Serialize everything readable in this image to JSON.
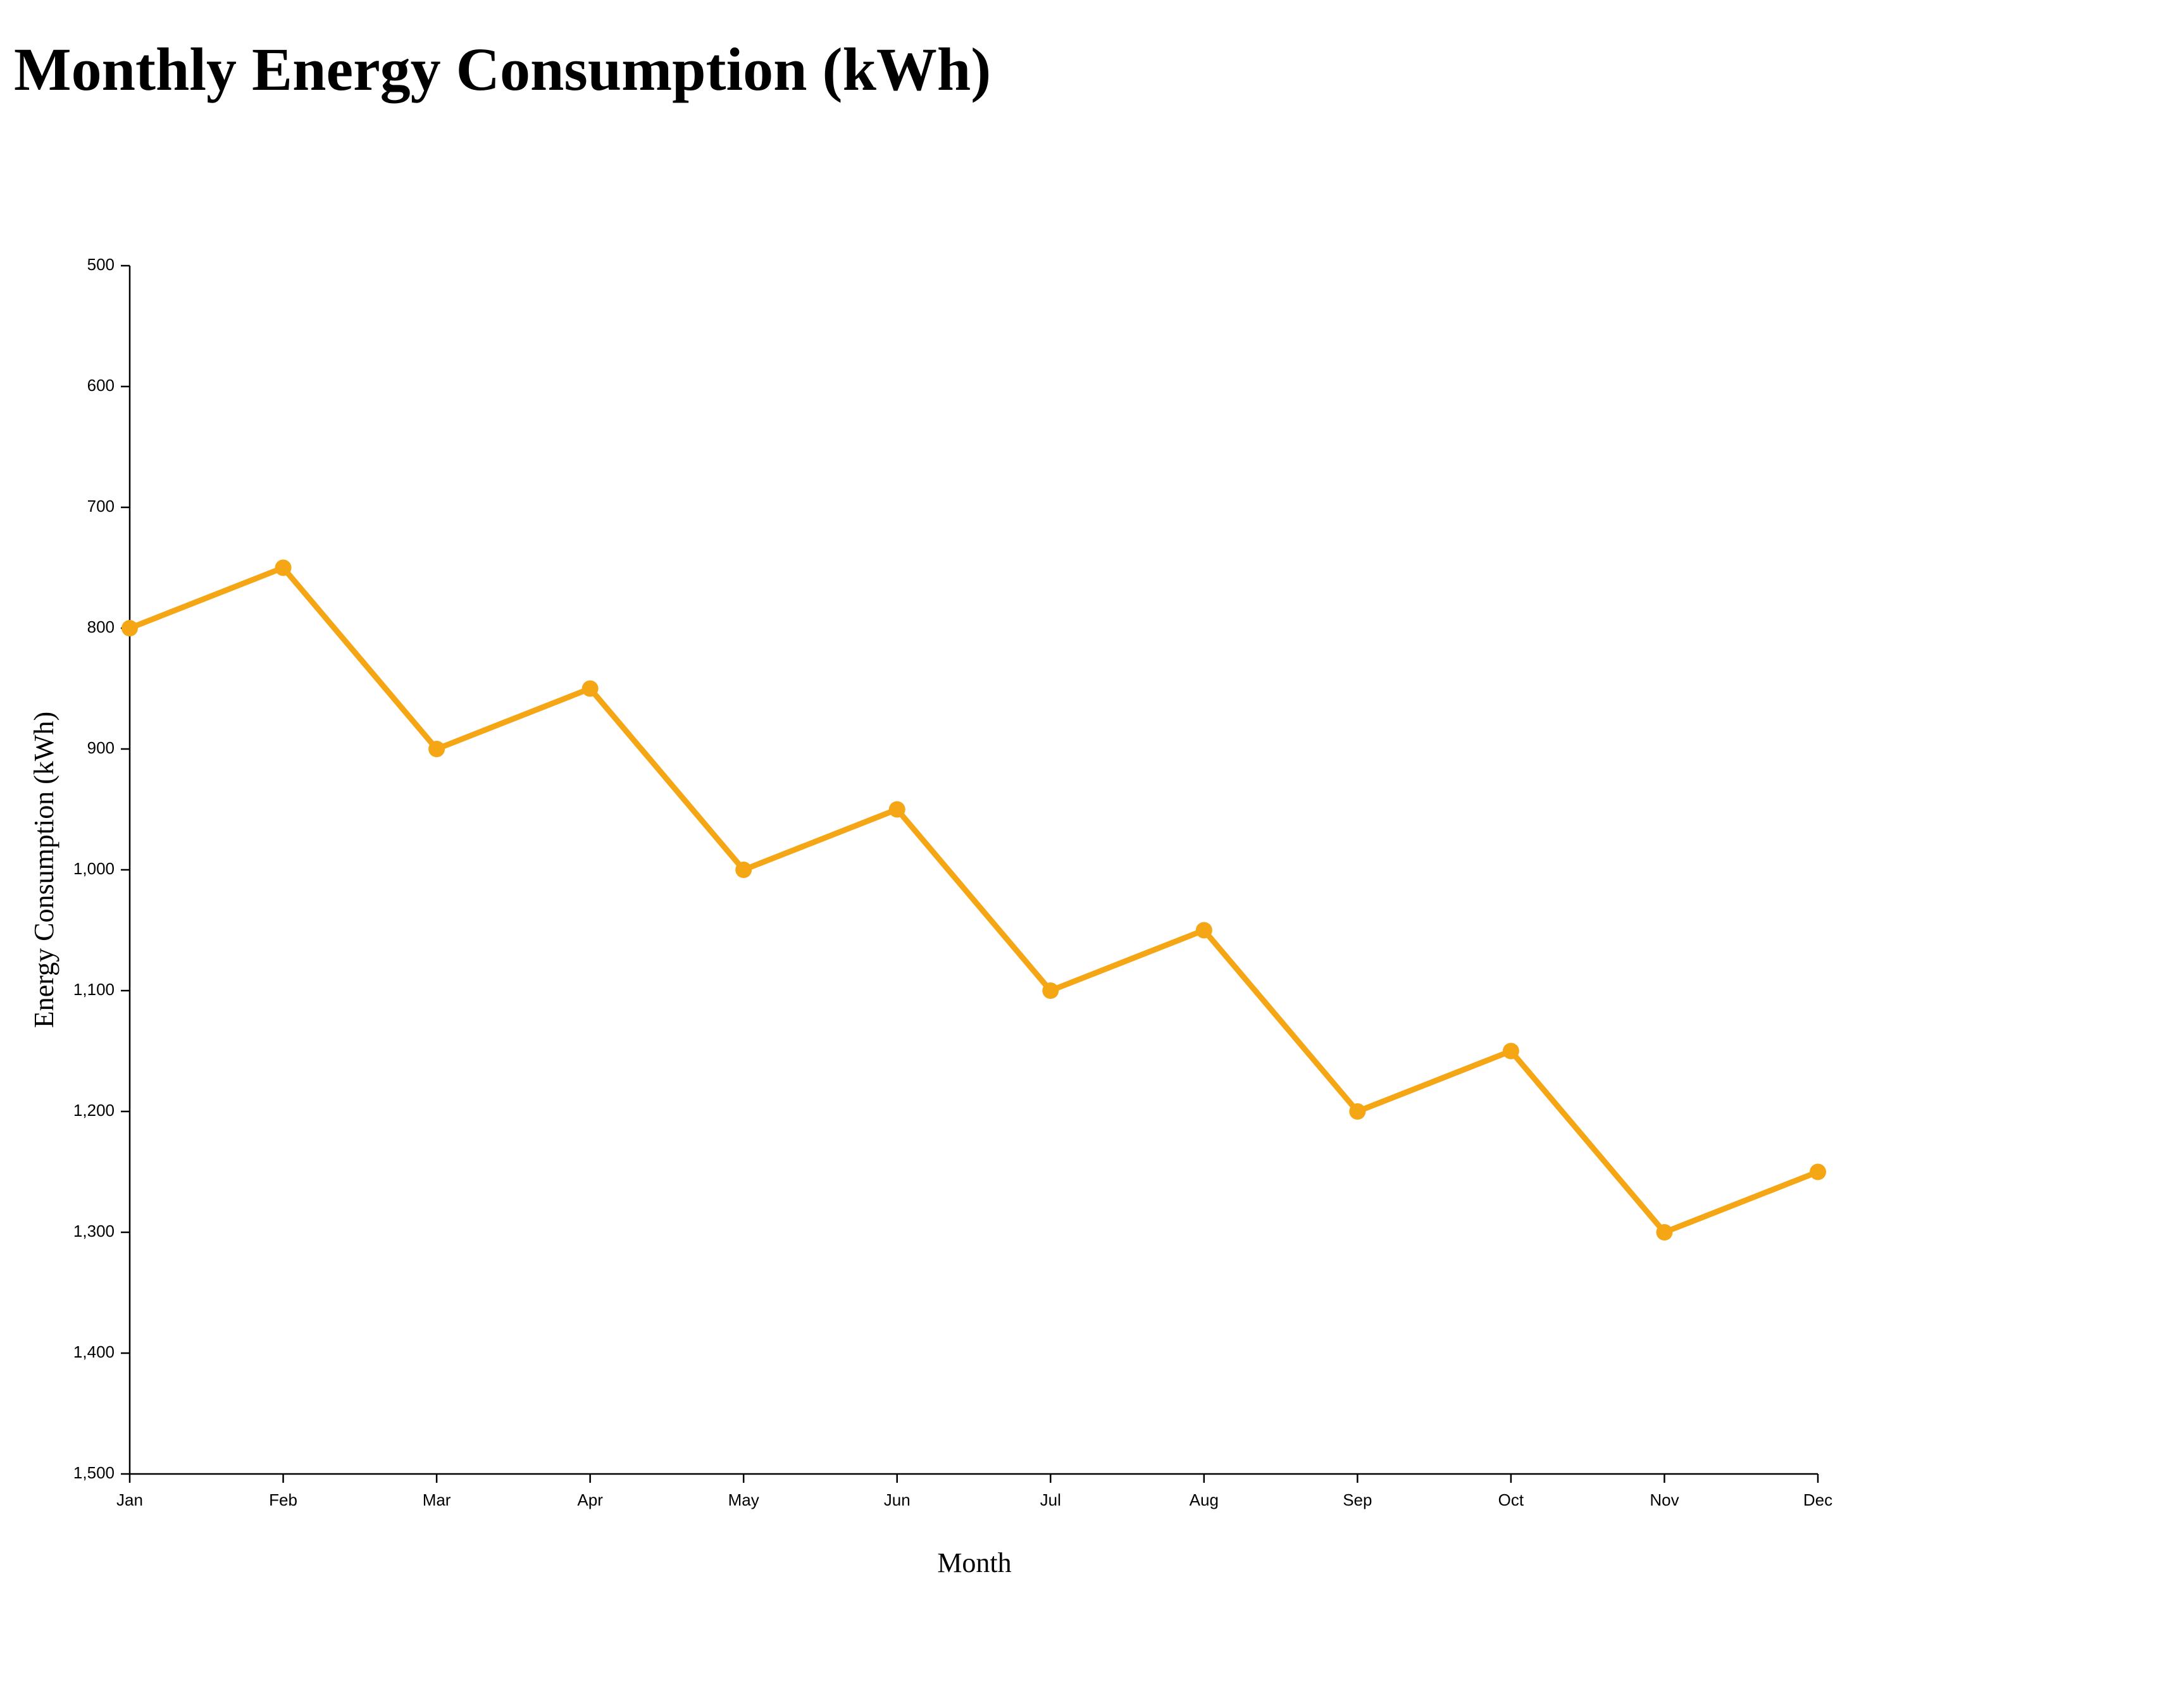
{
  "chart_data": {
    "type": "line",
    "title": "Monthly Energy Consumption (kWh)",
    "xlabel": "Month",
    "ylabel": "Energy Consumption (kWh)",
    "categories": [
      "Jan",
      "Feb",
      "Mar",
      "Apr",
      "May",
      "Jun",
      "Jul",
      "Aug",
      "Sep",
      "Oct",
      "Nov",
      "Dec"
    ],
    "series": [
      {
        "values": [
          800,
          750,
          900,
          850,
          1000,
          950,
          1100,
          1050,
          1200,
          1150,
          1300,
          1250
        ]
      }
    ],
    "ylim": [
      500,
      1500
    ],
    "y_axis_inverted": true,
    "y_ticks": [
      "500",
      "600",
      "700",
      "800",
      "900",
      "1,000",
      "1,100",
      "1,200",
      "1,300",
      "1,400",
      "1,500"
    ],
    "grid": false,
    "line_color": "#f5a614",
    "marker": "circle"
  }
}
